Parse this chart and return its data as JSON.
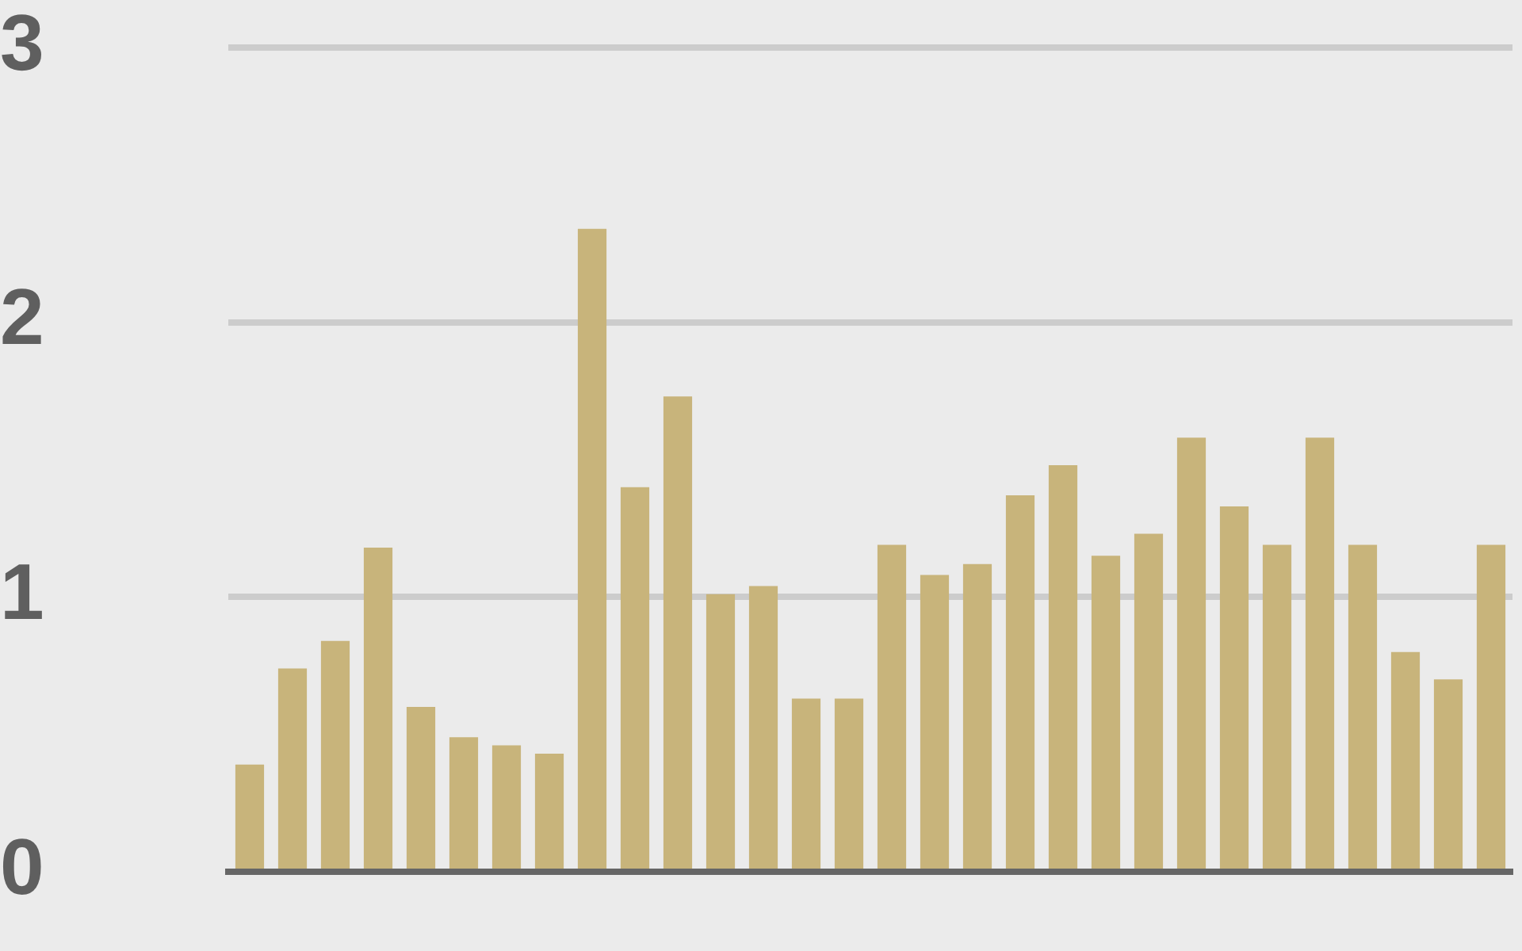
{
  "chart_data": {
    "type": "bar",
    "categories": [
      null,
      null,
      null,
      null,
      null,
      null,
      null,
      null,
      null,
      null,
      null,
      null,
      null,
      null,
      null,
      null,
      null,
      null,
      null,
      null,
      null,
      null,
      null,
      null,
      null,
      null,
      null,
      null,
      null,
      null
    ],
    "values": [
      0.39,
      0.74,
      0.84,
      1.18,
      0.6,
      0.49,
      0.46,
      0.43,
      2.34,
      1.4,
      1.73,
      1.01,
      1.04,
      0.63,
      0.63,
      1.19,
      1.08,
      1.12,
      1.37,
      1.48,
      1.15,
      1.23,
      1.58,
      1.33,
      1.19,
      1.58,
      1.19,
      0.8,
      0.7,
      1.19
    ],
    "color": "#c8b47b",
    "ylim": [
      0,
      3
    ],
    "yticks": [
      0,
      1,
      2,
      3
    ],
    "grid": "y",
    "tick_labels": "y"
  }
}
